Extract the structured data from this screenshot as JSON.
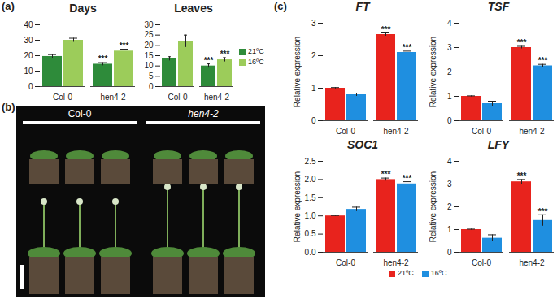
{
  "panel_labels": [
    "(a)",
    "(b)",
    "(c)"
  ],
  "photo": {
    "labels": [
      "Col-0",
      "hen4-2"
    ]
  },
  "chart_data": [
    {
      "type": "bar",
      "title": "Days",
      "categories": [
        "Col-0",
        "hen4-2"
      ],
      "series": [
        {
          "name": "21ºC",
          "color": "#2e8b3a",
          "values": [
            19.5,
            14.5
          ],
          "errors": [
            1.2,
            1.0
          ]
        },
        {
          "name": "16ºC",
          "color": "#9ccc5a",
          "values": [
            30,
            23
          ],
          "errors": [
            1.3,
            1.2
          ]
        }
      ],
      "annotations": [
        {
          "category": "hen4-2",
          "series": "21ºC",
          "text": "***"
        },
        {
          "category": "hen4-2",
          "series": "16ºC",
          "text": "***"
        }
      ],
      "ylim": [
        0,
        40
      ],
      "yticks": [
        0,
        10,
        20,
        30,
        40
      ]
    },
    {
      "type": "bar",
      "title": "Leaves",
      "categories": [
        "Col-0",
        "hen4-2"
      ],
      "series": [
        {
          "name": "21ºC",
          "color": "#2e8b3a",
          "values": [
            13.5,
            10
          ],
          "errors": [
            1.0,
            1.0
          ]
        },
        {
          "name": "16ºC",
          "color": "#9ccc5a",
          "values": [
            22,
            13
          ],
          "errors": [
            3.0,
            1.0
          ]
        }
      ],
      "annotations": [
        {
          "category": "hen4-2",
          "series": "21ºC",
          "text": "***"
        },
        {
          "category": "hen4-2",
          "series": "16ºC",
          "text": "***"
        }
      ],
      "ylim": [
        0,
        30
      ],
      "yticks": [
        0,
        5,
        10,
        15,
        20,
        25,
        30
      ],
      "legend": "right"
    },
    {
      "type": "bar",
      "title": "FT",
      "ylabel": "Relative expression",
      "categories": [
        "Col-0",
        "hen4-2"
      ],
      "series": [
        {
          "name": "21ºC",
          "color": "#e8231d",
          "values": [
            1.0,
            2.65
          ],
          "errors": [
            0.02,
            0.05
          ]
        },
        {
          "name": "16ºC",
          "color": "#1f8fe0",
          "values": [
            0.8,
            2.1
          ],
          "errors": [
            0.05,
            0.04
          ]
        }
      ],
      "annotations": [
        {
          "category": "hen4-2",
          "series": "21ºC",
          "text": "***"
        },
        {
          "category": "hen4-2",
          "series": "16ºC",
          "text": "***"
        }
      ],
      "ylim": [
        0,
        3
      ],
      "yticks": [
        0,
        1,
        2,
        3
      ]
    },
    {
      "type": "bar",
      "title": "TSF",
      "ylabel": "Relative expression",
      "categories": [
        "Col-0",
        "hen4-2"
      ],
      "series": [
        {
          "name": "21ºC",
          "color": "#e8231d",
          "values": [
            1.0,
            3.0
          ],
          "errors": [
            0.02,
            0.05
          ]
        },
        {
          "name": "16ºC",
          "color": "#1f8fe0",
          "values": [
            0.7,
            2.25
          ],
          "errors": [
            0.1,
            0.06
          ]
        }
      ],
      "annotations": [
        {
          "category": "hen4-2",
          "series": "21ºC",
          "text": "***"
        },
        {
          "category": "hen4-2",
          "series": "16ºC",
          "text": "***"
        }
      ],
      "ylim": [
        0,
        4
      ],
      "yticks": [
        0,
        1,
        2,
        3,
        4
      ]
    },
    {
      "type": "bar",
      "title": "SOC1",
      "ylabel": "Relative expression",
      "categories": [
        "Col-0",
        "hen4-2"
      ],
      "series": [
        {
          "name": "21ºC",
          "color": "#e8231d",
          "values": [
            1.0,
            2.0
          ],
          "errors": [
            0.01,
            0.04
          ]
        },
        {
          "name": "16ºC",
          "color": "#1f8fe0",
          "values": [
            1.18,
            1.88
          ],
          "errors": [
            0.06,
            0.06
          ]
        }
      ],
      "annotations": [
        {
          "category": "hen4-2",
          "series": "21ºC",
          "text": "***"
        },
        {
          "category": "hen4-2",
          "series": "16ºC",
          "text": "***"
        }
      ],
      "ylim": [
        0,
        2.5
      ],
      "yticks": [
        {
          "value": 0,
          "label": "0.0"
        },
        0.5,
        {
          "value": 1,
          "label": "1.0"
        },
        1.5,
        {
          "value": 2,
          "label": "2.0"
        },
        2.5
      ],
      "legend": "bottom"
    },
    {
      "type": "bar",
      "title": "LFY",
      "ylabel": "Relative expression",
      "categories": [
        "Col-0",
        "hen4-2"
      ],
      "series": [
        {
          "name": "21ºC",
          "color": "#e8231d",
          "values": [
            1.0,
            3.1
          ],
          "errors": [
            0.02,
            0.1
          ]
        },
        {
          "name": "16ºC",
          "color": "#1f8fe0",
          "values": [
            0.62,
            1.4
          ],
          "errors": [
            0.15,
            0.25
          ]
        }
      ],
      "annotations": [
        {
          "category": "hen4-2",
          "series": "21ºC",
          "text": "***"
        },
        {
          "category": "hen4-2",
          "series": "16ºC",
          "text": "***"
        }
      ],
      "ylim": [
        0,
        4
      ],
      "yticks": [
        0,
        1,
        2,
        3,
        4
      ]
    }
  ]
}
